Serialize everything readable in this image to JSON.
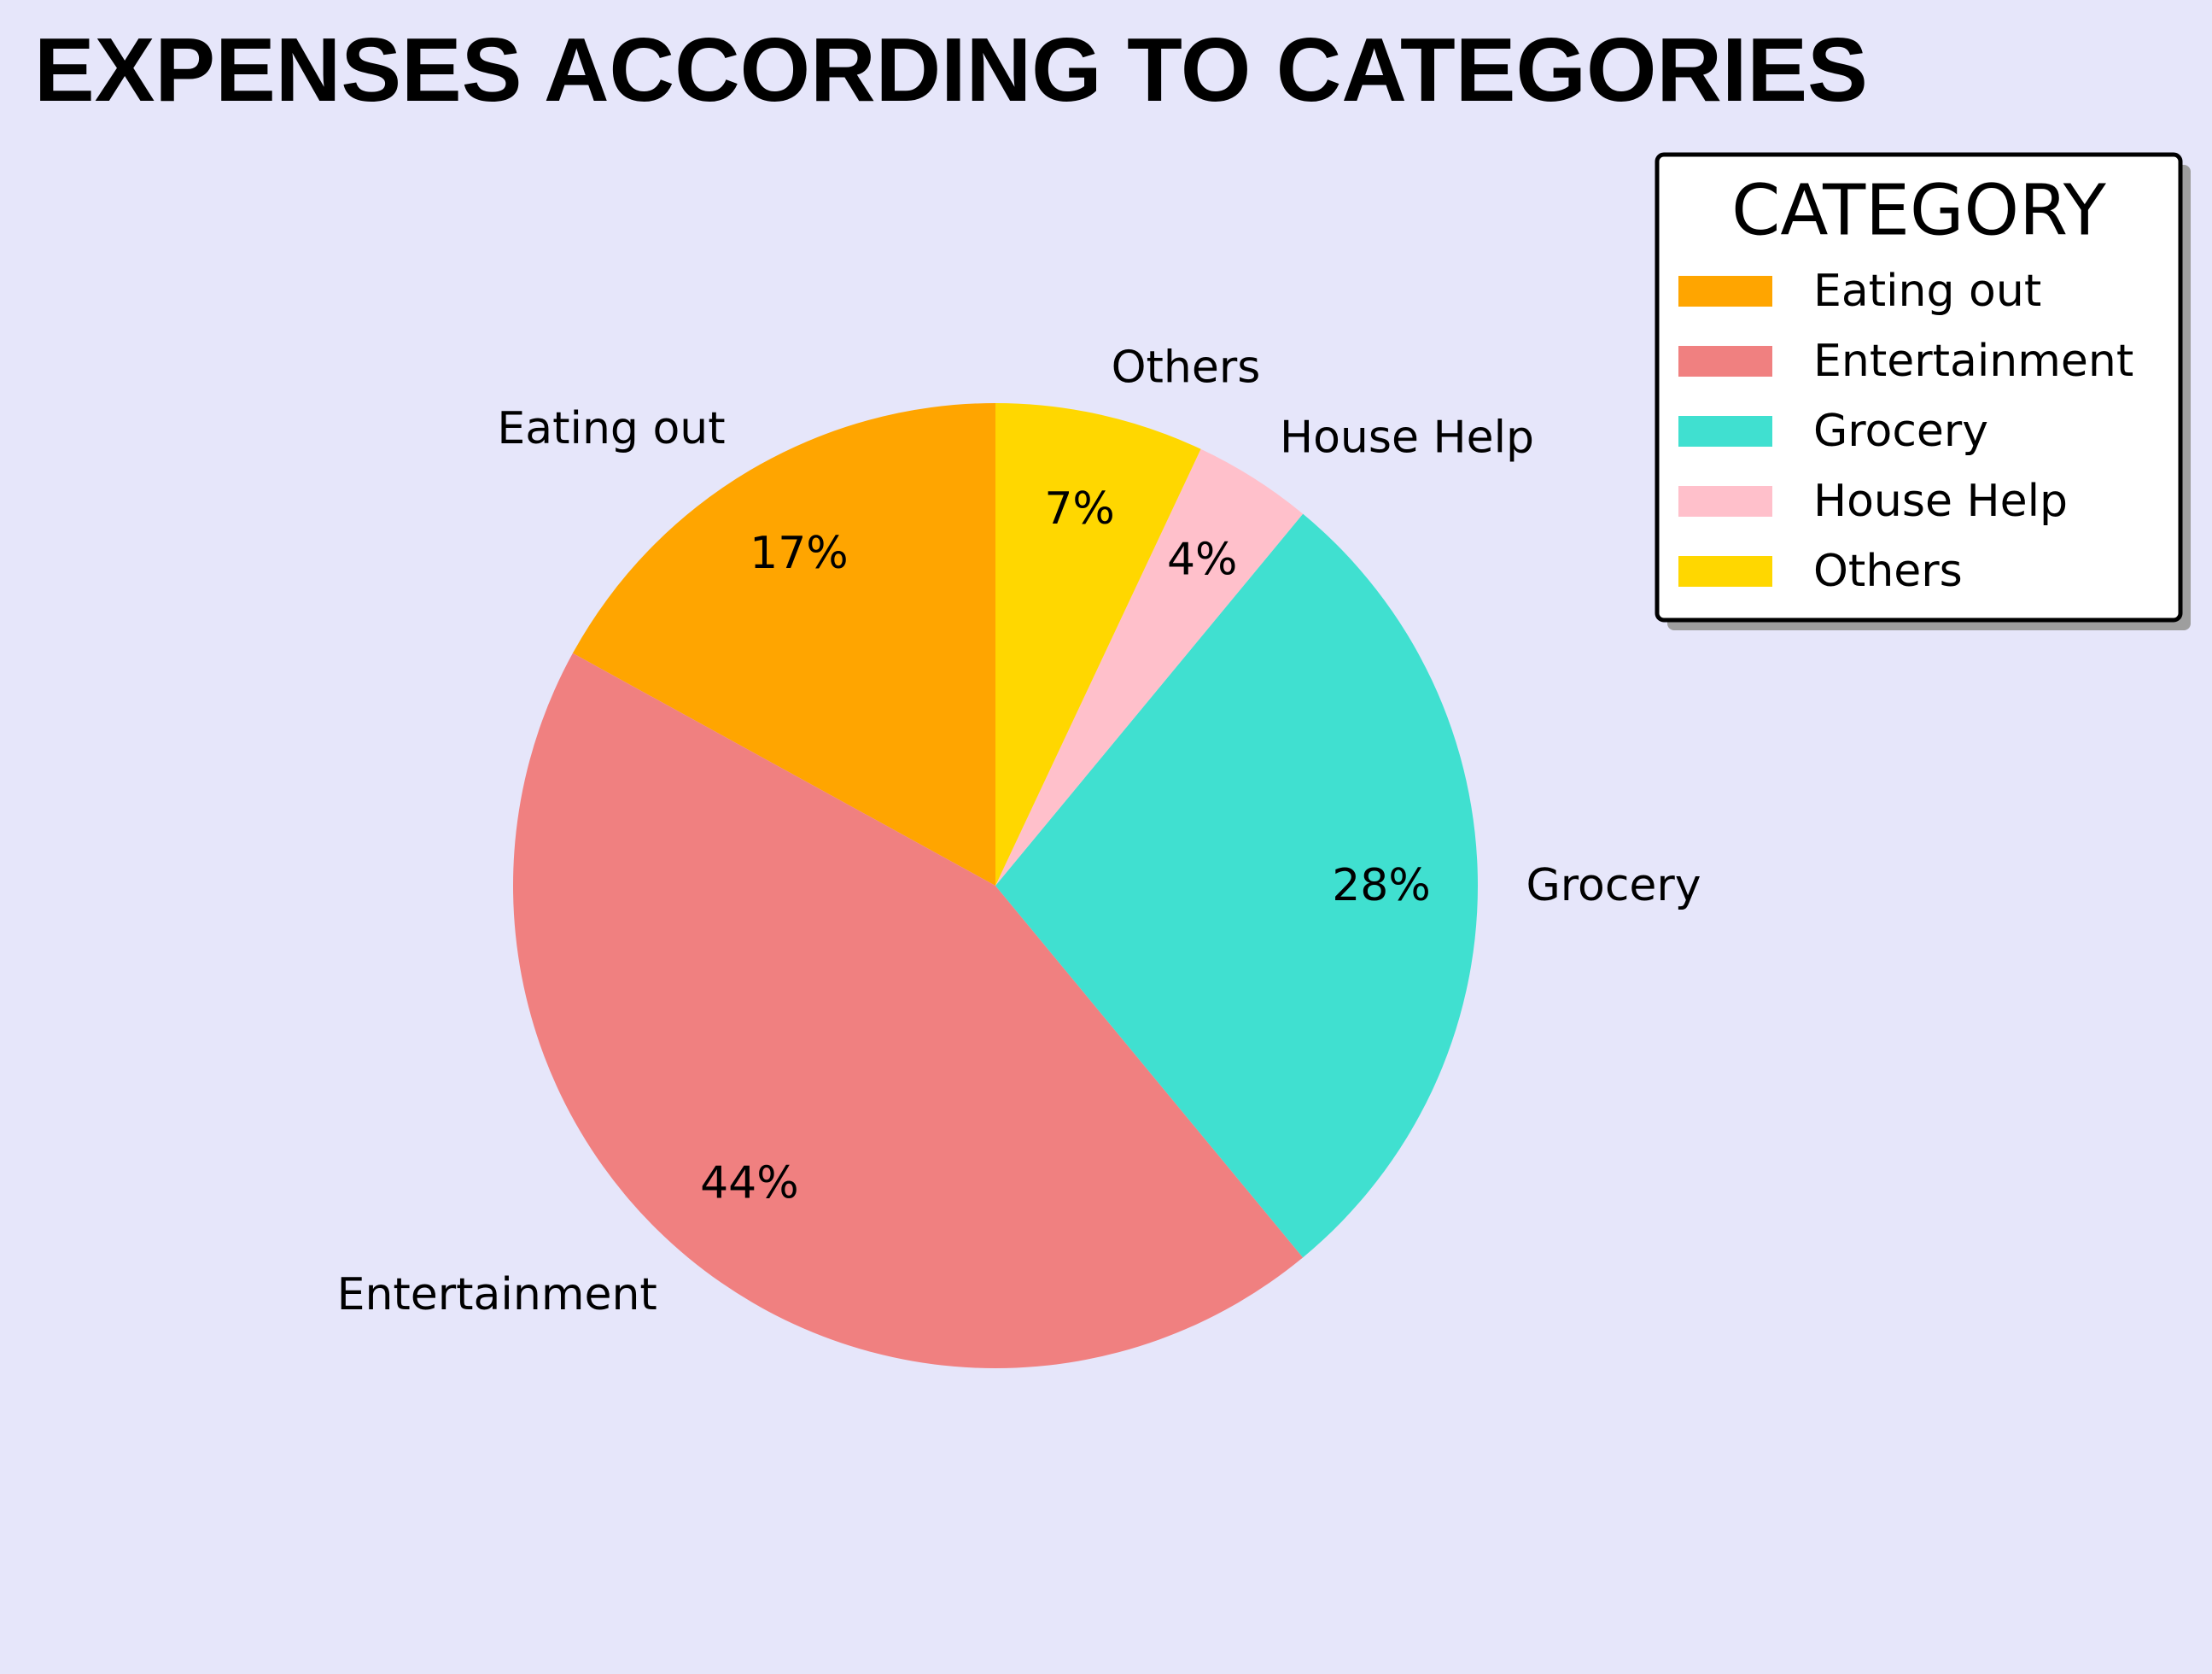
{
  "chart_data": {
    "type": "pie",
    "title": "EXPENSES ACCORDING TO CATEGORIES",
    "categories": [
      "Eating out",
      "Entertainment",
      "Grocery",
      "House Help",
      "Others"
    ],
    "values": [
      17,
      44,
      28,
      4,
      7
    ],
    "value_labels": [
      "17%",
      "44%",
      "28%",
      "4%",
      "7%"
    ],
    "colors": [
      "#ffa500",
      "#f08080",
      "#40e0d0",
      "#ffc0cb",
      "#ffd700"
    ],
    "start_angle_deg": 90,
    "direction": "counterclockwise",
    "legend": {
      "title": "CATEGORY",
      "placement": "top-right",
      "entries": [
        "Eating out",
        "Entertainment",
        "Grocery",
        "House Help",
        "Others"
      ]
    }
  }
}
